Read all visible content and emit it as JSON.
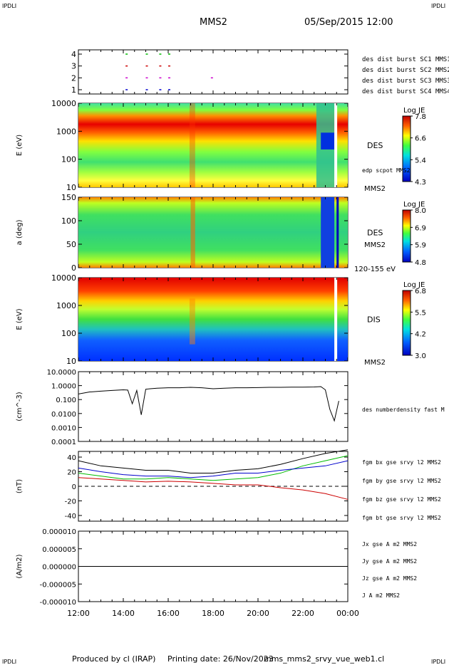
{
  "header": {
    "corner_left": "IPDLI",
    "corner_right": "IPDLI",
    "title": "MMS2",
    "datetime": "05/Sep/2015 12:00",
    "footer_corner_left": "IPDLI",
    "footer_corner_right": "IPDLI"
  },
  "footer": {
    "produced_by": "Produced by cl (IRAP)",
    "printing_date": "Printing date: 26/Nov/2023",
    "filename": "mms_mms2_srvy_vue_web1.cl"
  },
  "colors": {
    "sc1": "#0000cc",
    "sc2": "#cc00cc",
    "sc3": "#cc0000",
    "sc4": "#00bb00",
    "bx": "#cc0000",
    "by": "#00bb00",
    "bz": "#0000cc",
    "bt": "#000000"
  },
  "chart_data": [
    {
      "id": "availability",
      "type": "scatter",
      "yticks": [
        "1",
        "2",
        "3",
        "4"
      ],
      "series": [
        {
          "name": "des dist burst SC1 MMS1",
          "level": 1,
          "x_hours": [
            14.1,
            15.0,
            15.6,
            16.0
          ]
        },
        {
          "name": "des dist burst SC2 MMS2",
          "level": 2,
          "x_hours": [
            14.1,
            15.0,
            15.6,
            16.0,
            17.9
          ]
        },
        {
          "name": "des dist burst SC3 MMS3",
          "level": 3,
          "x_hours": [
            14.1,
            15.0,
            15.6,
            16.0
          ]
        },
        {
          "name": "des dist burst SC4 MMS4",
          "level": 4,
          "x_hours": [
            14.1,
            15.0,
            15.6,
            16.0
          ]
        }
      ]
    },
    {
      "id": "des-energy",
      "type": "heatmap",
      "ylabel": "E (eV)",
      "yticks": [
        "10",
        "100",
        "1000",
        "10000"
      ],
      "instrument": "DES",
      "spacecraft": "MMS2",
      "overlay_label": "edp scpot MMS2",
      "colorbar": {
        "title": "Log JE",
        "ticks": [
          "7.8",
          "6.6",
          "5.4",
          "4.3"
        ]
      }
    },
    {
      "id": "des-pitch",
      "type": "heatmap",
      "ylabel": "a (deg)",
      "yticks": [
        "0",
        "50",
        "100",
        "150"
      ],
      "instrument": "DES",
      "spacecraft": "MMS2",
      "energy_range": "120-155 eV",
      "colorbar": {
        "title": "Log JE",
        "ticks": [
          "8.0",
          "6.9",
          "5.9",
          "4.8"
        ]
      }
    },
    {
      "id": "dis-energy",
      "type": "heatmap",
      "ylabel": "E (eV)",
      "yticks": [
        "10",
        "100",
        "1000",
        "10000"
      ],
      "instrument": "DIS",
      "spacecraft": "MMS2",
      "colorbar": {
        "title": "Log JE",
        "ticks": [
          "6.8",
          "5.5",
          "4.2",
          "3.0"
        ]
      }
    },
    {
      "id": "density",
      "type": "line",
      "ylabel": "(cm^-3)",
      "yscale": "log",
      "yticks": [
        "0.0001",
        "0.0010",
        "0.0100",
        "0.100",
        "1.0000",
        "10.0000"
      ],
      "series": [
        {
          "name": "des numberdensity fast M"
        }
      ],
      "x_hours": [
        12.0,
        12.5,
        13.0,
        13.5,
        14.0,
        14.2,
        14.4,
        14.6,
        14.8,
        15.0,
        15.2,
        15.5,
        16.0,
        16.5,
        17.0,
        17.5,
        18.0,
        18.5,
        19.0,
        19.5,
        20.0,
        20.5,
        21.0,
        21.5,
        22.0,
        22.5,
        22.8,
        23.0,
        23.2,
        23.4,
        23.6
      ],
      "values": [
        0.25,
        0.35,
        0.4,
        0.45,
        0.5,
        0.48,
        0.05,
        0.45,
        0.008,
        0.55,
        0.6,
        0.65,
        0.7,
        0.7,
        0.75,
        0.7,
        0.6,
        0.65,
        0.7,
        0.7,
        0.72,
        0.75,
        0.75,
        0.78,
        0.78,
        0.8,
        0.85,
        0.5,
        0.02,
        0.003,
        0.08
      ]
    },
    {
      "id": "magnetic-field",
      "type": "line",
      "ylabel": "(nT)",
      "yticks": [
        "-40",
        "-20",
        "0",
        "20",
        "40"
      ],
      "ylim": [
        -50,
        50
      ],
      "x_hours": [
        12.0,
        13.0,
        14.0,
        15.0,
        16.0,
        17.0,
        18.0,
        19.0,
        20.0,
        21.0,
        22.0,
        23.0,
        24.0
      ],
      "series": [
        {
          "name": "fgm bx gse srvy l2 MMS2",
          "values": [
            12,
            10,
            8,
            6,
            7,
            6,
            4,
            2,
            2,
            -2,
            -5,
            -10,
            -18
          ]
        },
        {
          "name": "fgm by gse srvy l2 MMS2",
          "values": [
            18,
            14,
            10,
            10,
            12,
            10,
            8,
            10,
            12,
            18,
            28,
            35,
            42
          ]
        },
        {
          "name": "fgm bz gse srvy l2 MMS2",
          "values": [
            25,
            20,
            16,
            14,
            14,
            12,
            14,
            18,
            18,
            22,
            25,
            28,
            35
          ]
        },
        {
          "name": "fgm bt gse srvy l2 MMS2",
          "values": [
            35,
            28,
            25,
            22,
            22,
            18,
            18,
            22,
            24,
            30,
            38,
            45,
            50
          ]
        }
      ]
    },
    {
      "id": "current-density",
      "type": "line",
      "ylabel": "(A/m2)",
      "yticks": [
        "-0.000010",
        "-0.000005",
        "0.000000",
        "0.000005",
        "0.000010"
      ],
      "ylim": [
        -1e-05,
        1e-05
      ],
      "series": [
        {
          "name": "Jx gse A m2 MMS2",
          "color": "#cc0000"
        },
        {
          "name": "Jy gse A m2 MMS2",
          "color": "#00bb00"
        },
        {
          "name": "Jz gse A m2 MMS2",
          "color": "#0000cc"
        },
        {
          "name": "J A m2 MMS2",
          "color": "#000000"
        }
      ]
    }
  ],
  "xaxis": {
    "ticks": [
      "12:00",
      "14:00",
      "16:00",
      "18:00",
      "20:00",
      "22:00",
      "00:00"
    ]
  }
}
